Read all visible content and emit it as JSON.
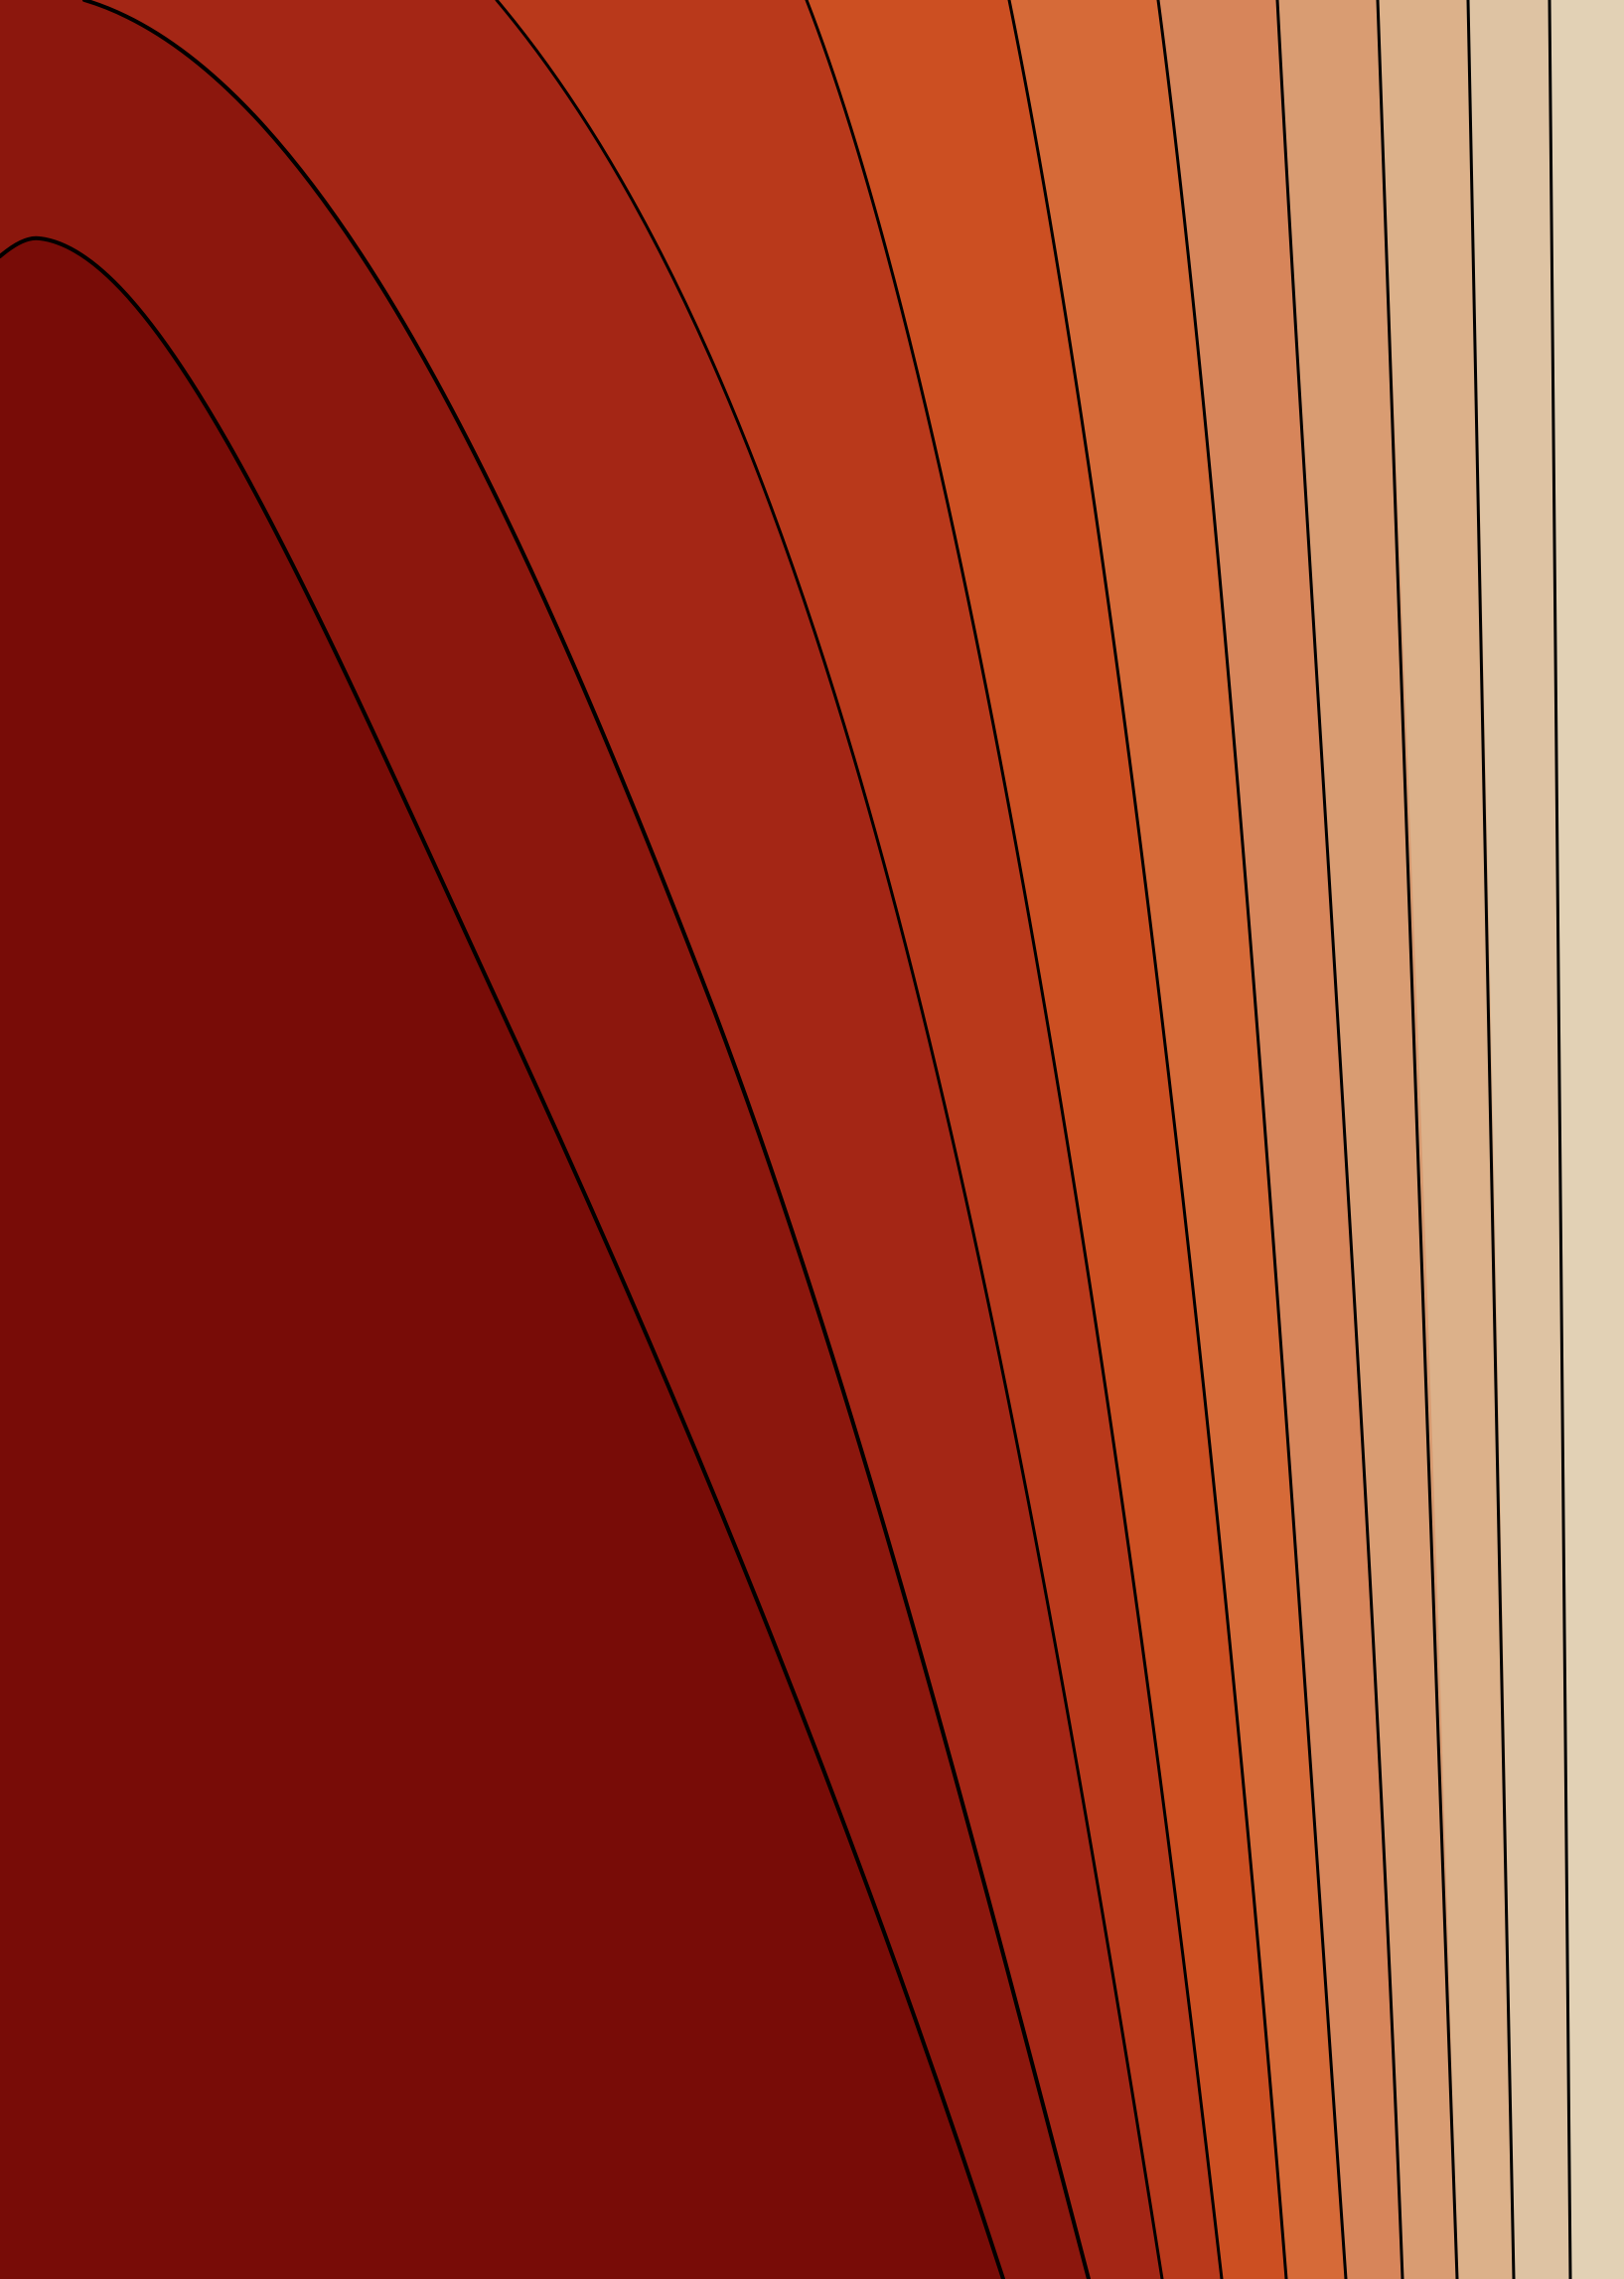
{
  "artwork": {
    "kind": "filled contour field",
    "contour_line_color": "#000000",
    "band_colors": [
      "#780c07",
      "#8c170d",
      "#a42615",
      "#b9391b",
      "#cc4f22",
      "#d66a38",
      "#d7855a",
      "#d99c72",
      "#dcb18a",
      "#dec3a3",
      "#e2d1b5"
    ],
    "regions": [
      {
        "name": "band-1",
        "color": "#780c07"
      },
      {
        "name": "band-2",
        "color": "#8c170d"
      },
      {
        "name": "band-3",
        "color": "#a42615"
      },
      {
        "name": "band-4",
        "color": "#b9391b"
      },
      {
        "name": "band-5",
        "color": "#cc4f22"
      },
      {
        "name": "band-6",
        "color": "#d66a38"
      },
      {
        "name": "band-7",
        "color": "#d7855a"
      },
      {
        "name": "band-8",
        "color": "#d99c72"
      },
      {
        "name": "band-9",
        "color": "#dcb18a"
      },
      {
        "name": "band-10",
        "color": "#dec3a3"
      },
      {
        "name": "band-11",
        "color": "#e2d1b5"
      }
    ]
  }
}
